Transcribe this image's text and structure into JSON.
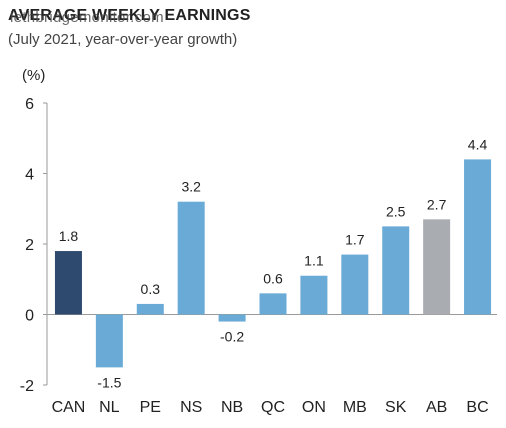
{
  "header": {
    "title": "AVERAGE WEEKLY EARNINGS",
    "subtitle": "(July 2021, year-over-year growth)",
    "watermark": "lethbridgemonitor.com"
  },
  "chart_data": {
    "type": "bar",
    "title": "AVERAGE WEEKLY EARNINGS",
    "subtitle": "(July 2021, year-over-year growth)",
    "ylabel": "(%)",
    "xlabel": "",
    "categories": [
      "CAN",
      "NL",
      "PE",
      "NS",
      "NB",
      "QC",
      "ON",
      "MB",
      "SK",
      "AB",
      "BC"
    ],
    "values": [
      1.8,
      -1.5,
      0.3,
      3.2,
      -0.2,
      0.6,
      1.1,
      1.7,
      2.5,
      2.7,
      4.4
    ],
    "data_labels": [
      "1.8",
      "-1.5",
      "0.3",
      "3.2",
      "-0.2",
      "0.6",
      "1.1",
      "1.7",
      "2.5",
      "2.7",
      "4.4"
    ],
    "bar_colors": [
      "#2e4a6e",
      "#6aaad6",
      "#6aaad6",
      "#6aaad6",
      "#6aaad6",
      "#6aaad6",
      "#6aaad6",
      "#6aaad6",
      "#6aaad6",
      "#a9adb1",
      "#6aaad6"
    ],
    "ylim": [
      -2,
      6
    ],
    "yticks": [
      "-2",
      "0",
      "2",
      "4",
      "6"
    ],
    "grid": false,
    "legend": "none"
  }
}
